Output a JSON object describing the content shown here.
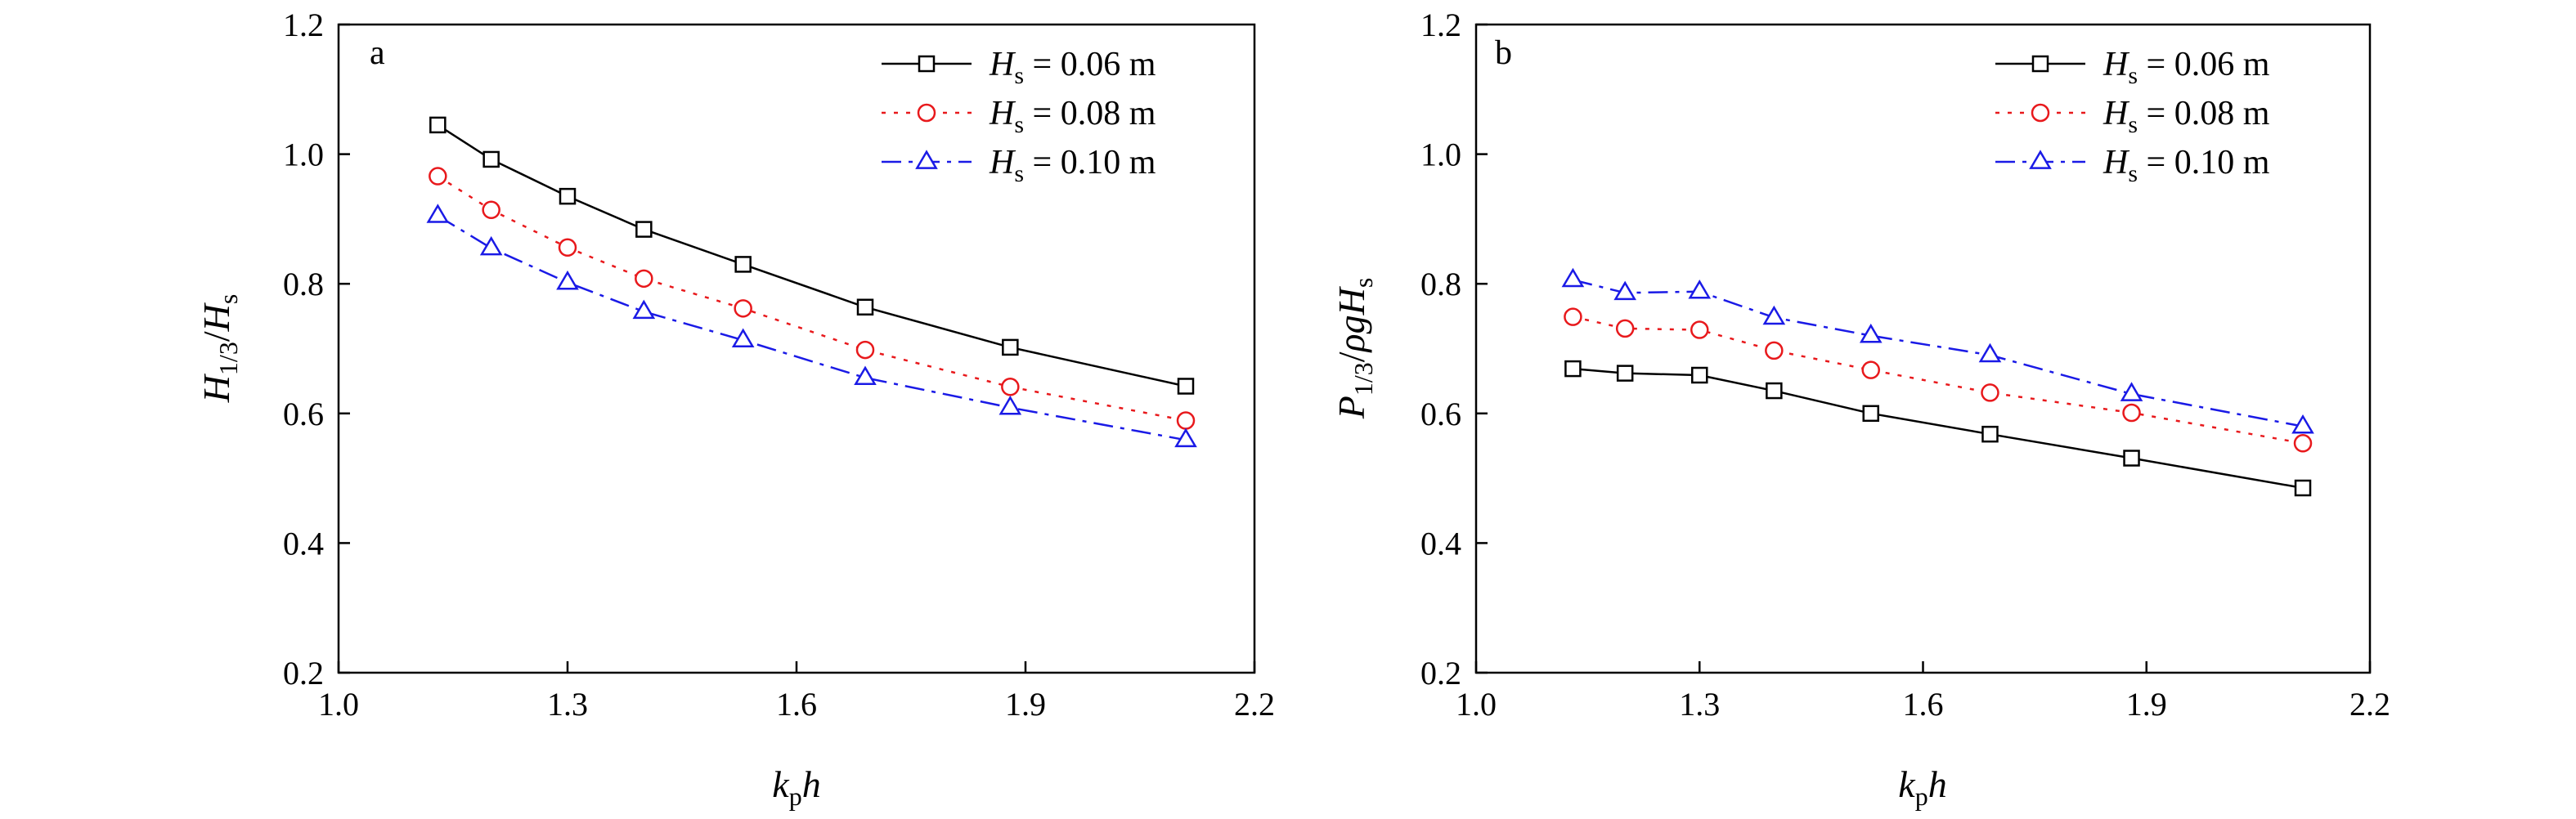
{
  "chart_data": [
    {
      "type": "line",
      "panel_label": "a",
      "xlabel": "k_p h",
      "ylabel": "H_1/3 / H_s",
      "xlim": [
        1.0,
        2.2
      ],
      "ylim": [
        0.2,
        1.2
      ],
      "x_ticks": [
        "1.0",
        "1.3",
        "1.6",
        "1.9",
        "2.2"
      ],
      "y_ticks": [
        "0.2",
        "0.4",
        "0.6",
        "0.8",
        "1.0",
        "1.2"
      ],
      "grid": false,
      "legend_position": "top-right",
      "x": [
        1.13,
        1.2,
        1.3,
        1.4,
        1.53,
        1.69,
        1.88,
        2.11
      ],
      "series": [
        {
          "name": "H_s = 0.06 m",
          "values": [
            1.045,
            0.992,
            0.935,
            0.884,
            0.83,
            0.764,
            0.702,
            0.642
          ]
        },
        {
          "name": "H_s = 0.08 m",
          "values": [
            0.966,
            0.914,
            0.856,
            0.808,
            0.762,
            0.698,
            0.641,
            0.589
          ]
        },
        {
          "name": "H_s = 0.10 m",
          "values": [
            0.905,
            0.855,
            0.802,
            0.757,
            0.713,
            0.655,
            0.609,
            0.559
          ]
        }
      ]
    },
    {
      "type": "line",
      "panel_label": "b",
      "xlabel": "k_p h",
      "ylabel": "P_1/3 / ρgH_s",
      "xlim": [
        1.0,
        2.2
      ],
      "ylim": [
        0.2,
        1.2
      ],
      "x_ticks": [
        "1.0",
        "1.3",
        "1.6",
        "1.9",
        "2.2"
      ],
      "y_ticks": [
        "0.2",
        "0.4",
        "0.6",
        "0.8",
        "1.0",
        "1.2"
      ],
      "grid": false,
      "legend_position": "top-right",
      "x": [
        1.13,
        1.2,
        1.3,
        1.4,
        1.53,
        1.69,
        1.88,
        2.11
      ],
      "series": [
        {
          "name": "H_s = 0.06 m",
          "values": [
            0.669,
            0.662,
            0.659,
            0.635,
            0.6,
            0.568,
            0.531,
            0.485
          ]
        },
        {
          "name": "H_s = 0.08 m",
          "values": [
            0.749,
            0.731,
            0.729,
            0.697,
            0.667,
            0.632,
            0.601,
            0.554
          ]
        },
        {
          "name": "H_s = 0.10 m",
          "values": [
            0.806,
            0.786,
            0.788,
            0.748,
            0.72,
            0.69,
            0.63,
            0.58
          ]
        }
      ]
    }
  ],
  "legend_entries": [
    {
      "symbol": "H",
      "sub": "s",
      "rest": " = 0.06 m"
    },
    {
      "symbol": "H",
      "sub": "s",
      "rest": " = 0.08 m"
    },
    {
      "symbol": "H",
      "sub": "s",
      "rest": " = 0.10 m"
    }
  ],
  "axis_text": {
    "x": {
      "k": "k",
      "p": "p",
      "h": "h"
    },
    "y_a": {
      "H": "H",
      "frac": "1/3",
      "slash": "/",
      "H2": "H",
      "s": "s"
    },
    "y_b": {
      "P": "P",
      "frac": "1/3",
      "slash": "/",
      "rho": "ρ",
      "g": "g",
      "H": "H",
      "s": "s"
    }
  },
  "series_styles": [
    {
      "color": "#000000",
      "dash": "",
      "marker": "square"
    },
    {
      "color": "#e8191c",
      "dash": "5 10",
      "marker": "circle"
    },
    {
      "color": "#1a1ae6",
      "dash": "24 9 5 9",
      "marker": "triangle"
    }
  ]
}
